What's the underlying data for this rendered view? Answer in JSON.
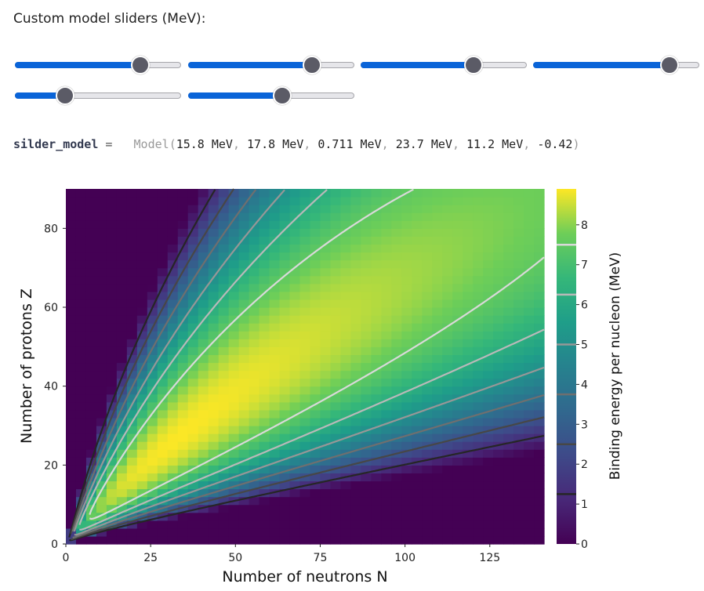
{
  "heading": "Custom model sliders (MeV):",
  "sliders": [
    {
      "name": "slider-1",
      "fraction": 0.755
    },
    {
      "name": "slider-2",
      "fraction": 0.746
    },
    {
      "name": "slider-3",
      "fraction": 0.681
    },
    {
      "name": "slider-4",
      "fraction": 0.822
    },
    {
      "name": "slider-5",
      "fraction": 0.303
    },
    {
      "name": "slider-6",
      "fraction": 0.566
    }
  ],
  "code": {
    "variable": "silder_model",
    "equals": "=",
    "function": "Model",
    "args": [
      "15.8 MeV",
      "17.8 MeV",
      "0.711 MeV",
      "23.7 MeV",
      "11.2 MeV",
      "-0.42"
    ]
  },
  "chart_data": {
    "type": "heatmap",
    "xlabel": "Number of neutrons N",
    "ylabel": "Number of protons Z",
    "colorbar_label": "Binding energy per nucleon (MeV)",
    "xlim": [
      0,
      141
    ],
    "ylim": [
      0,
      90
    ],
    "zlim": [
      0,
      8.9
    ],
    "x_ticks": [
      "0",
      "25",
      "50",
      "75",
      "100",
      "125"
    ],
    "y_ticks": [
      "0",
      "20",
      "40",
      "60",
      "80"
    ],
    "colorbar_ticks": [
      "0",
      "1",
      "2",
      "3",
      "4",
      "5",
      "6",
      "7",
      "8"
    ],
    "contour_levels": [
      1.25,
      2.5,
      3.75,
      5.0,
      6.25,
      7.5
    ],
    "colormap": "viridis",
    "model_params_mev": {
      "volume": 15.8,
      "surface": 17.8,
      "coulomb": 0.711,
      "asymmetry": 23.7,
      "pairing": 11.2,
      "exponent": -0.42
    }
  }
}
